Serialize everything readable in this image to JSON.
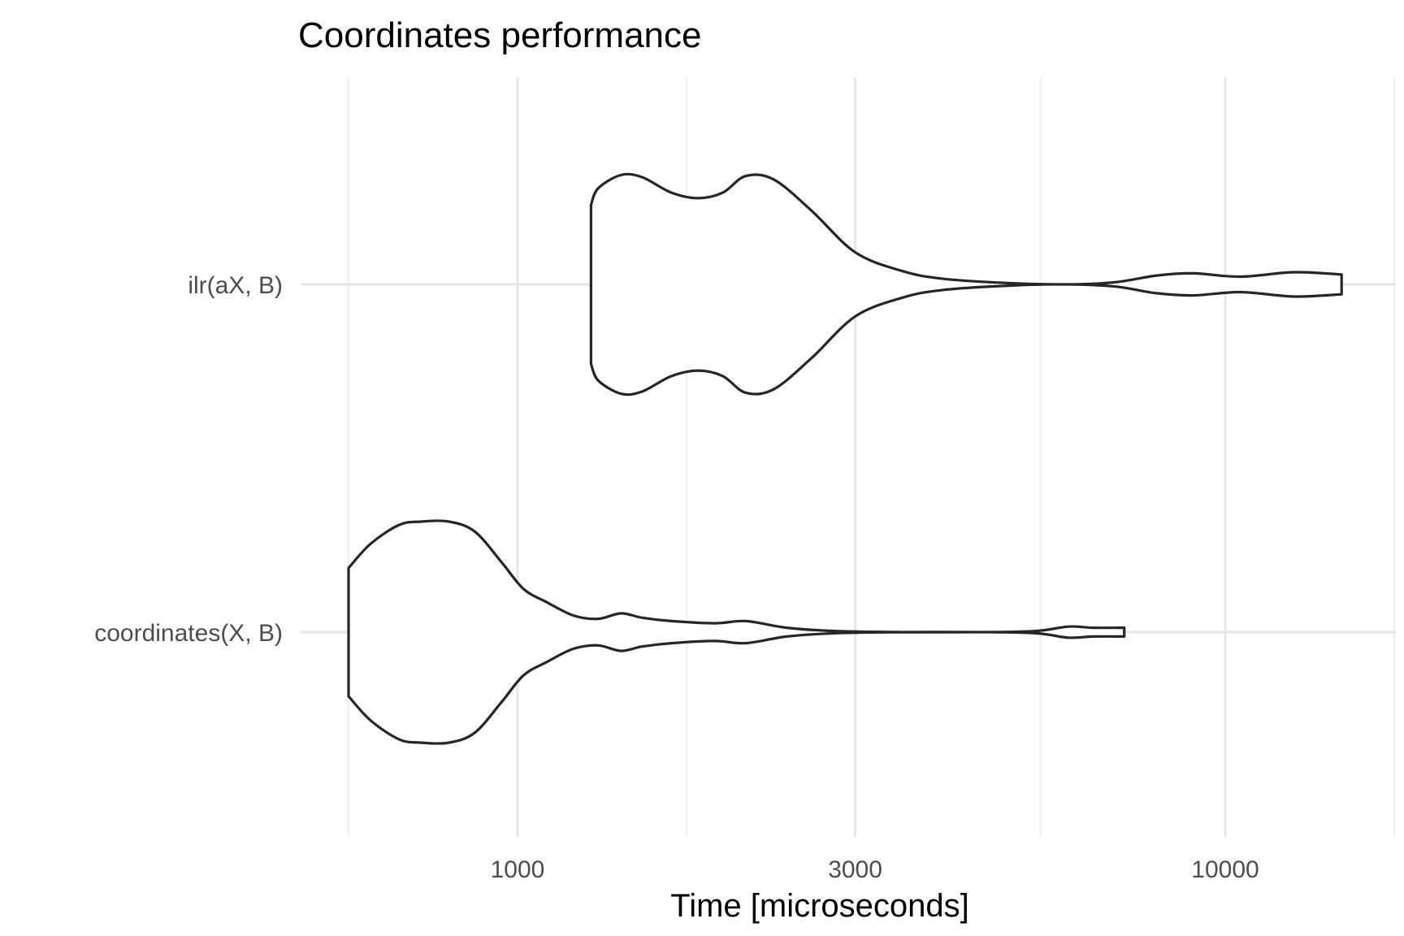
{
  "chart_data": {
    "type": "violin",
    "title": "Coordinates performance",
    "xlabel": "Time [microseconds]",
    "ylabel": "",
    "x_scale": "log10",
    "xlim": [
      580,
      18500
    ],
    "x_ticks": [
      1000,
      3000,
      10000
    ],
    "x_tick_labels": [
      "1000",
      "3000",
      "10000"
    ],
    "x_minor_ticks": [
      577,
      1732,
      5477,
      17320
    ],
    "categories": [
      "ilr(aX, B)",
      "coordinates(X, B)"
    ],
    "series": [
      {
        "name": "ilr(aX, B)",
        "density_profile": [
          [
            1270,
            0.72
          ],
          [
            1300,
            0.87
          ],
          [
            1400,
            0.99
          ],
          [
            1500,
            0.97
          ],
          [
            1650,
            0.83
          ],
          [
            1800,
            0.78
          ],
          [
            1950,
            0.83
          ],
          [
            2100,
            0.98
          ],
          [
            2300,
            0.95
          ],
          [
            2600,
            0.67
          ],
          [
            3000,
            0.29
          ],
          [
            3500,
            0.12
          ],
          [
            4000,
            0.05
          ],
          [
            5000,
            0.01
          ],
          [
            6000,
            0.0
          ],
          [
            7000,
            0.02
          ],
          [
            8000,
            0.08
          ],
          [
            9000,
            0.1
          ],
          [
            10500,
            0.07
          ],
          [
            12500,
            0.11
          ],
          [
            14600,
            0.09
          ]
        ]
      },
      {
        "name": "coordinates(X, B)",
        "density_profile": [
          [
            577,
            0.58
          ],
          [
            620,
            0.8
          ],
          [
            680,
            0.97
          ],
          [
            730,
            1.0
          ],
          [
            800,
            1.0
          ],
          [
            870,
            0.91
          ],
          [
            950,
            0.63
          ],
          [
            1020,
            0.39
          ],
          [
            1100,
            0.27
          ],
          [
            1200,
            0.15
          ],
          [
            1300,
            0.12
          ],
          [
            1400,
            0.17
          ],
          [
            1500,
            0.13
          ],
          [
            1650,
            0.1
          ],
          [
            1900,
            0.08
          ],
          [
            2100,
            0.1
          ],
          [
            2400,
            0.04
          ],
          [
            2800,
            0.01
          ],
          [
            3500,
            0.0
          ],
          [
            4500,
            0.0
          ],
          [
            5400,
            0.01
          ],
          [
            6000,
            0.05
          ],
          [
            6500,
            0.04
          ],
          [
            7200,
            0.04
          ]
        ]
      }
    ],
    "grid": true,
    "legend": "none"
  }
}
